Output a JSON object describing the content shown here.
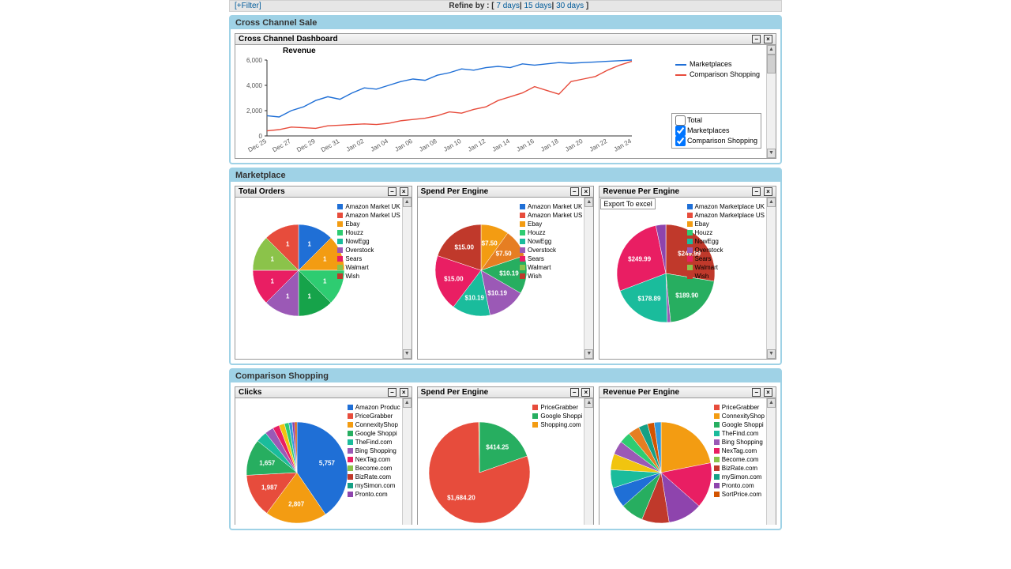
{
  "filter": {
    "toggle": "[+Filter]",
    "refine_label": "Refine by : [",
    "d7": " 7 days",
    "d15": " 15 days",
    "d30": " 30 days",
    "close": "]"
  },
  "sections": {
    "cross": "Cross Channel Sale",
    "marketplace": "Marketplace",
    "comparison": "Comparison Shopping"
  },
  "cross_panel": {
    "title": "Cross Channel Dashboard",
    "chart": {
      "title": "Revenue",
      "type": "line",
      "ylim": [
        0,
        6000
      ],
      "ytick_step": 2000,
      "x_labels": [
        "Dec 25",
        "Dec 27",
        "Dec 29",
        "Dec 31",
        "Jan 02",
        "Jan 04",
        "Jan 06",
        "Jan 08",
        "Jan 10",
        "Jan 12",
        "Jan 14",
        "Jan 16",
        "Jan 18",
        "Jan 20",
        "Jan 22",
        "Jan 24"
      ],
      "series": [
        {
          "name": "Marketplaces",
          "color": "#1f6fd6",
          "y": [
            1600,
            1500,
            2000,
            2300,
            2800,
            3100,
            2900,
            3400,
            3800,
            3700,
            4000,
            4300,
            4500,
            4400,
            4800,
            5000,
            5300,
            5200,
            5400,
            5500,
            5400,
            5700,
            5600,
            5700,
            5800,
            5750,
            5800,
            5850,
            5900,
            5950,
            6000
          ]
        },
        {
          "name": "Comparison Shopping",
          "color": "#e74c3c",
          "y": [
            400,
            500,
            700,
            650,
            600,
            800,
            850,
            900,
            950,
            900,
            1000,
            1200,
            1300,
            1400,
            1600,
            1900,
            1800,
            2100,
            2300,
            2800,
            3100,
            3400,
            3900,
            3600,
            3300,
            4300,
            4500,
            4700,
            5200,
            5600,
            5900
          ]
        }
      ],
      "legend_series": [
        {
          "name": "Marketplaces",
          "color": "#1f6fd6"
        },
        {
          "name": "Comparison Shopping",
          "color": "#e74c3c"
        }
      ],
      "checks": [
        {
          "label": "Total",
          "checked": false,
          "color": "#ffffff"
        },
        {
          "label": "Marketplaces",
          "checked": true,
          "color": "#1f6fd6"
        },
        {
          "label": "Comparison Shopping",
          "checked": true,
          "color": "#e74c3c"
        }
      ]
    }
  },
  "marketplace_panels": [
    {
      "title": "Total Orders",
      "pie": {
        "type": "pie",
        "radius": 58,
        "slices": [
          {
            "value": 1,
            "color": "#1f6fd6",
            "label": "1"
          },
          {
            "value": 1,
            "color": "#f39c12",
            "label": "1"
          },
          {
            "value": 1,
            "color": "#2ecc71",
            "label": "1"
          },
          {
            "value": 1,
            "color": "#16a34a",
            "label": "1"
          },
          {
            "value": 1,
            "color": "#9b59b6",
            "label": "1"
          },
          {
            "value": 1,
            "color": "#e91e63",
            "label": "1"
          },
          {
            "value": 1,
            "color": "#8bc34a",
            "label": "1"
          },
          {
            "value": 1,
            "color": "#e74c3c",
            "label": "1"
          }
        ],
        "legend": [
          {
            "label": "Amazon Market UK",
            "color": "#1f6fd6"
          },
          {
            "label": "Amazon Market US",
            "color": "#e74c3c"
          },
          {
            "label": "Ebay",
            "color": "#f39c12"
          },
          {
            "label": "Houzz",
            "color": "#2ecc71"
          },
          {
            "label": "NowEgg",
            "color": "#1abc9c"
          },
          {
            "label": "Overstock",
            "color": "#9b59b6"
          },
          {
            "label": "Sears",
            "color": "#e91e63"
          },
          {
            "label": "Walmart",
            "color": "#8bc34a"
          },
          {
            "label": "Wish",
            "color": "#c0392b"
          }
        ]
      }
    },
    {
      "title": "Spend Per Engine",
      "pie": {
        "type": "pie",
        "radius": 58,
        "slices": [
          {
            "value": 7.5,
            "color": "#f39c12",
            "label": "$7.50"
          },
          {
            "value": 7.5,
            "color": "#e67e22",
            "label": "$7.50"
          },
          {
            "value": 10.19,
            "color": "#27ae60",
            "label": "$10.19"
          },
          {
            "value": 10.19,
            "color": "#9b59b6",
            "label": "$10.19"
          },
          {
            "value": 10.19,
            "color": "#1abc9c",
            "label": "$10.19"
          },
          {
            "value": 15,
            "color": "#e91e63",
            "label": "$15.00"
          },
          {
            "value": 15,
            "color": "#c0392b",
            "label": "$15.00"
          }
        ],
        "legend": [
          {
            "label": "Amazon Market UK",
            "color": "#1f6fd6"
          },
          {
            "label": "Amazon Market US",
            "color": "#e74c3c"
          },
          {
            "label": "Ebay",
            "color": "#f39c12"
          },
          {
            "label": "Houzz",
            "color": "#2ecc71"
          },
          {
            "label": "NowEgg",
            "color": "#1abc9c"
          },
          {
            "label": "Overstock",
            "color": "#9b59b6"
          },
          {
            "label": "Sears",
            "color": "#e91e63"
          },
          {
            "label": "Walmart",
            "color": "#8bc34a"
          },
          {
            "label": "Wish",
            "color": "#c0392b"
          }
        ]
      }
    },
    {
      "title": "Revenue Per Engine",
      "sub": "Export To excel",
      "pie": {
        "type": "pie",
        "radius": 62,
        "slices": [
          {
            "value": 0.5,
            "color": "#1f6fd6",
            "label": ""
          },
          {
            "value": 249.99,
            "color": "#c0392b",
            "label": "$249.99"
          },
          {
            "value": 189.9,
            "color": "#27ae60",
            "label": "$189.90"
          },
          {
            "value": 10,
            "color": "#9b59b6",
            "label": ""
          },
          {
            "value": 178.89,
            "color": "#1abc9c",
            "label": "$178.89"
          },
          {
            "value": 249.99,
            "color": "#e91e63",
            "label": "$249.99"
          },
          {
            "value": 30,
            "color": "#8e44ad",
            "label": ""
          }
        ],
        "legend": [
          {
            "label": "Amazon Marketplace UK",
            "color": "#1f6fd6"
          },
          {
            "label": "Amazon Marketplace US",
            "color": "#e74c3c"
          },
          {
            "label": "Ebay",
            "color": "#f39c12"
          },
          {
            "label": "Houzz",
            "color": "#2ecc71"
          },
          {
            "label": "NowEgg",
            "color": "#1abc9c"
          },
          {
            "label": "Overstock",
            "color": "#9b59b6"
          },
          {
            "label": "Sears",
            "color": "#e91e63"
          },
          {
            "label": "Walmart",
            "color": "#8bc34a"
          },
          {
            "label": "Wish",
            "color": "#c0392b"
          }
        ]
      }
    }
  ],
  "comparison_panels": [
    {
      "title": "Clicks",
      "pie": {
        "type": "pie",
        "radius": 64,
        "slices": [
          {
            "value": 5757,
            "color": "#1f6fd6",
            "label": "5,757"
          },
          {
            "value": 2807,
            "color": "#f39c12",
            "label": "2,807"
          },
          {
            "value": 1987,
            "color": "#e74c3c",
            "label": "1,987"
          },
          {
            "value": 1657,
            "color": "#27ae60",
            "label": "1,657"
          },
          {
            "value": 500,
            "color": "#1abc9c",
            "label": ""
          },
          {
            "value": 400,
            "color": "#9b59b6",
            "label": ""
          },
          {
            "value": 300,
            "color": "#e91e63",
            "label": ""
          },
          {
            "value": 250,
            "color": "#f1c40f",
            "label": ""
          },
          {
            "value": 200,
            "color": "#2ecc71",
            "label": ""
          },
          {
            "value": 150,
            "color": "#3498db",
            "label": ""
          },
          {
            "value": 120,
            "color": "#8e44ad",
            "label": ""
          },
          {
            "value": 100,
            "color": "#d35400",
            "label": ""
          }
        ],
        "legend": [
          {
            "label": "Amazon Produc",
            "color": "#1f6fd6"
          },
          {
            "label": "PriceGrabber",
            "color": "#e74c3c"
          },
          {
            "label": "ConnexityShop",
            "color": "#f39c12"
          },
          {
            "label": "Google Shoppi",
            "color": "#27ae60"
          },
          {
            "label": "TheFind.com",
            "color": "#1abc9c"
          },
          {
            "label": "Bing Shopping",
            "color": "#9b59b6"
          },
          {
            "label": "NexTag.com",
            "color": "#e91e63"
          },
          {
            "label": "Become.com",
            "color": "#8bc34a"
          },
          {
            "label": "BizRate.com",
            "color": "#c0392b"
          },
          {
            "label": "mySimon.com",
            "color": "#16a085"
          },
          {
            "label": "Pronto.com",
            "color": "#8e44ad"
          }
        ]
      }
    },
    {
      "title": "Spend Per Engine",
      "pie": {
        "type": "pie",
        "radius": 64,
        "slices": [
          {
            "value": 414.25,
            "color": "#27ae60",
            "label": "$414.25"
          },
          {
            "value": 1684.2,
            "color": "#e74c3c",
            "label": "$1,684.20"
          },
          {
            "value": 5,
            "color": "#f39c12",
            "label": ""
          }
        ],
        "legend": [
          {
            "label": "PriceGrabber",
            "color": "#e74c3c"
          },
          {
            "label": "Google Shoppi",
            "color": "#27ae60"
          },
          {
            "label": "Shopping.com",
            "color": "#f39c12"
          }
        ]
      }
    },
    {
      "title": "Revenue Per Engine",
      "pie": {
        "type": "pie",
        "radius": 64,
        "slices": [
          {
            "value": 30,
            "color": "#f39c12",
            "label": ""
          },
          {
            "value": 20,
            "color": "#e91e63",
            "label": ""
          },
          {
            "value": 15,
            "color": "#8e44ad",
            "label": ""
          },
          {
            "value": 12,
            "color": "#c0392b",
            "label": ""
          },
          {
            "value": 10,
            "color": "#27ae60",
            "label": ""
          },
          {
            "value": 9,
            "color": "#1f6fd6",
            "label": ""
          },
          {
            "value": 8,
            "color": "#1abc9c",
            "label": ""
          },
          {
            "value": 7,
            "color": "#f1c40f",
            "label": ""
          },
          {
            "value": 6,
            "color": "#9b59b6",
            "label": ""
          },
          {
            "value": 5,
            "color": "#2ecc71",
            "label": ""
          },
          {
            "value": 5,
            "color": "#e67e22",
            "label": ""
          },
          {
            "value": 4,
            "color": "#16a085",
            "label": ""
          },
          {
            "value": 3,
            "color": "#d35400",
            "label": ""
          },
          {
            "value": 3,
            "color": "#3498db",
            "label": ""
          }
        ],
        "legend": [
          {
            "label": "PriceGrabber",
            "color": "#e74c3c"
          },
          {
            "label": "ConnexityShop",
            "color": "#f39c12"
          },
          {
            "label": "Google Shoppi",
            "color": "#27ae60"
          },
          {
            "label": "TheFind.com",
            "color": "#1abc9c"
          },
          {
            "label": "Bing Shopping",
            "color": "#9b59b6"
          },
          {
            "label": "NexTag.com",
            "color": "#e91e63"
          },
          {
            "label": "Become.com",
            "color": "#8bc34a"
          },
          {
            "label": "BizRate.com",
            "color": "#c0392b"
          },
          {
            "label": "mySimon.com",
            "color": "#16a085"
          },
          {
            "label": "Pronto.com",
            "color": "#8e44ad"
          },
          {
            "label": "SortPrice.com",
            "color": "#d35400"
          }
        ]
      }
    }
  ]
}
